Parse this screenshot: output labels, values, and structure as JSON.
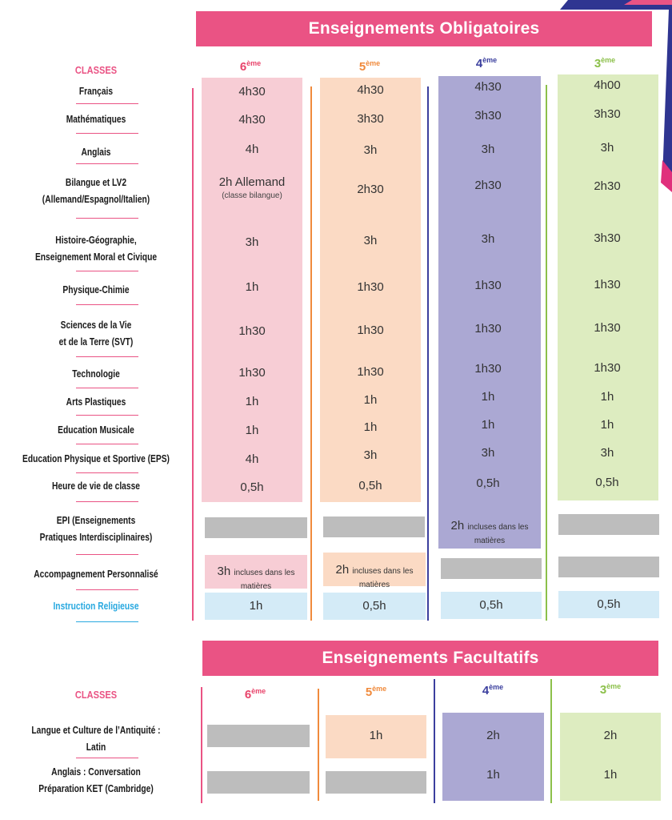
{
  "colors": {
    "pink_banner": "#ea5384",
    "col6": "#f7cdd5",
    "col5": "#fbdac4",
    "col4": "#aba8d3",
    "col3": "#ddecc0",
    "religion": "#d4ebf7",
    "grey": "#bdbdbd",
    "classes_label": "#ea5384",
    "head6": "#e8446b",
    "head5": "#f08a3c",
    "head4": "#3b3f9e",
    "head3": "#8cc04a",
    "ir_label": "#29a9e0"
  },
  "obligatoires": {
    "title": "Enseignements Obligatoires",
    "classes_label": "CLASSES",
    "headers": [
      {
        "num": "6",
        "sup": "ème"
      },
      {
        "num": "5",
        "sup": "ème"
      },
      {
        "num": "4",
        "sup": "ème"
      },
      {
        "num": "3",
        "sup": "ème"
      }
    ],
    "subjects": {
      "francais": "Français",
      "maths": "Mathématiques",
      "anglais": "Anglais",
      "bilangue_1": "Bilangue et LV2",
      "bilangue_2": "(Allemand/Espagnol/Italien)",
      "histoire_1": "Histoire-Géographie,",
      "histoire_2": "Enseignement Moral et Civique",
      "physique": "Physique-Chimie",
      "svt_1": "Sciences de la Vie",
      "svt_2": "et de la Terre (SVT)",
      "techno": "Technologie",
      "arts": "Arts Plastiques",
      "musique": "Education Musicale",
      "eps": "Education Physique et Sportive (EPS)",
      "vie_classe": "Heure de vie de classe",
      "epi_1": "EPI (Enseignements",
      "epi_2": "Pratiques Interdisciplinaires)",
      "ap": "Accompagnement Personnalisé",
      "religion": "Instruction Religieuse"
    },
    "c6": {
      "francais": "4h30",
      "maths": "4h30",
      "anglais": "4h",
      "bilangue": "2h Allemand",
      "bilangue_note": "(classe bilangue)",
      "histoire": "3h",
      "physique": "1h",
      "svt": "1h30",
      "techno": "1h30",
      "arts": "1h",
      "musique": "1h",
      "eps": "4h",
      "vie_classe": "0,5h",
      "ap_big": "3h",
      "ap_small": "incluses dans les matières",
      "religion": "1h"
    },
    "c5": {
      "francais": "4h30",
      "maths": "3h30",
      "anglais": "3h",
      "bilangue": "2h30",
      "histoire": "3h",
      "physique": "1h30",
      "svt": "1h30",
      "techno": "1h30",
      "arts": "1h",
      "musique": "1h",
      "eps": "3h",
      "vie_classe": "0,5h",
      "ap_big": "2h",
      "ap_small": "incluses dans les matières",
      "religion": "0,5h"
    },
    "c4": {
      "francais": "4h30",
      "maths": "3h30",
      "anglais": "3h",
      "bilangue": "2h30",
      "histoire": "3h",
      "physique": "1h30",
      "svt": "1h30",
      "techno": "1h30",
      "arts": "1h",
      "musique": "1h",
      "eps": "3h",
      "vie_classe": "0,5h",
      "epi_big": "2h",
      "epi_small": "incluses dans les matières",
      "religion": "0,5h"
    },
    "c3": {
      "francais": "4h00",
      "maths": "3h30",
      "anglais": "3h",
      "bilangue": "2h30",
      "histoire": "3h30",
      "physique": "1h30",
      "svt": "1h30",
      "techno": "1h30",
      "arts": "1h",
      "musique": "1h",
      "eps": "3h",
      "vie_classe": "0,5h",
      "religion": "0,5h"
    }
  },
  "facultatifs": {
    "title": "Enseignements Facultatifs",
    "classes_label": "CLASSES",
    "subjects": {
      "latin_1": "Langue et Culture de l’Antiquité :",
      "latin_2": "Latin",
      "anglais_1": "Anglais : Conversation",
      "anglais_2": "Préparation KET (Cambridge)"
    },
    "c5": {
      "latin": "1h"
    },
    "c4": {
      "latin": "2h",
      "anglais": "1h"
    },
    "c3": {
      "latin": "2h",
      "anglais": "1h"
    }
  }
}
